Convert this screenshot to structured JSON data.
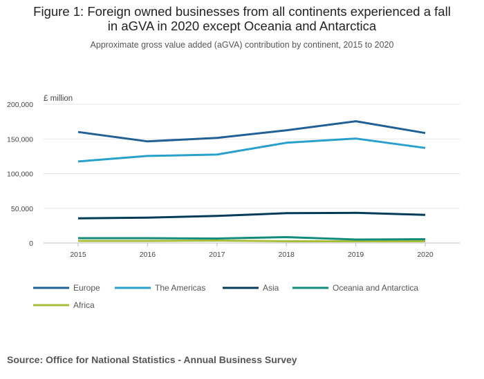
{
  "title_line1": "Figure 1: Foreign owned businesses from all continents experienced a fall",
  "title_line2": "in aGVA in 2020 except Oceania and Antarctica",
  "subtitle": "Approximate gross value added (aGVA) contribution by continent, 2015 to 2020",
  "source": "Source: Office for National Statistics - Annual Business Survey",
  "chart_data": {
    "type": "line",
    "title": "Figure 1: Foreign owned businesses from all continents experienced a fall in aGVA in 2020 except Oceania and Antarctica",
    "subtitle": "Approximate gross value added (aGVA) contribution by continent, 2015 to 2020",
    "ylabel": "£ million",
    "xlabel": "",
    "x": [
      "2015",
      "2016",
      "2017",
      "2018",
      "2019",
      "2020"
    ],
    "ylim": [
      0,
      200000
    ],
    "yticks": [
      "0",
      "50,000",
      "100,000",
      "150,000",
      "200,000"
    ],
    "ytick_values": [
      0,
      50000,
      100000,
      150000,
      200000
    ],
    "grid": true,
    "legend_position": "bottom",
    "series": [
      {
        "name": "Europe",
        "color": "#206095",
        "values": [
          160000,
          146500,
          151500,
          162500,
          175500,
          158500
        ]
      },
      {
        "name": "The Americas",
        "color": "#27a0cc",
        "values": [
          117500,
          125500,
          127500,
          144500,
          150500,
          137000
        ]
      },
      {
        "name": "Asia",
        "color": "#003c57",
        "values": [
          35500,
          36500,
          39000,
          43000,
          43500,
          40500
        ]
      },
      {
        "name": "Oceania and Antarctica",
        "color": "#118c7b",
        "values": [
          7000,
          7000,
          6500,
          8500,
          5000,
          5500
        ]
      },
      {
        "name": "Africa",
        "color": "#a8bd3a",
        "values": [
          3000,
          3000,
          3500,
          2500,
          2500,
          2500
        ]
      }
    ]
  }
}
